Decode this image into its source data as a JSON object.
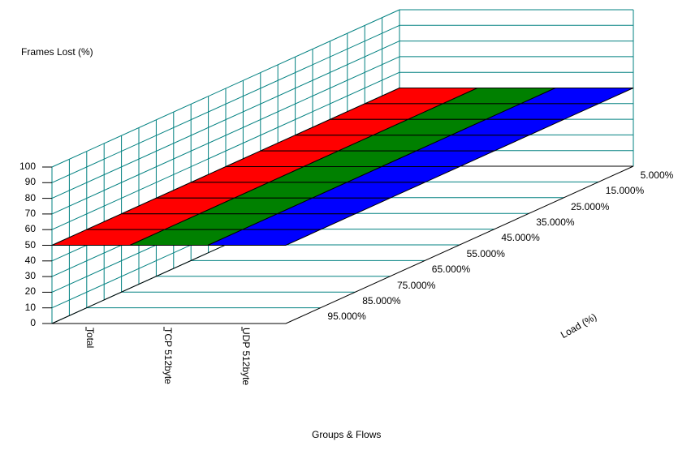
{
  "chart_data": {
    "type": "surface3d",
    "title": "",
    "zlabel": "Frames Lost (%)",
    "xlabel": "Groups & Flows",
    "ylabel": "Load (%)",
    "zlim": [
      0,
      100
    ],
    "z_ticks": [
      "0",
      "10",
      "20",
      "30",
      "40",
      "50",
      "60",
      "70",
      "80",
      "90",
      "100"
    ],
    "categories": [
      "Total",
      "TCP 512byte",
      "UDP 512byte"
    ],
    "load_ticks": [
      "5.000%",
      "15.000%",
      "25.000%",
      "35.000%",
      "45.000%",
      "55.000%",
      "65.000%",
      "75.000%",
      "85.000%",
      "95.000%"
    ],
    "series": [
      {
        "name": "Total",
        "color": "#ff0000",
        "values": [
          50,
          50,
          50,
          50,
          50,
          50,
          50,
          50,
          50,
          50
        ]
      },
      {
        "name": "TCP 512byte",
        "color": "#008000",
        "values": [
          50,
          50,
          50,
          50,
          50,
          50,
          50,
          50,
          50,
          50
        ]
      },
      {
        "name": "UDP 512byte",
        "color": "#0000ff",
        "values": [
          50,
          50,
          50,
          50,
          50,
          50,
          50,
          50,
          50,
          50
        ]
      }
    ],
    "grid": true,
    "gridColor": "#008080",
    "legend": "none"
  }
}
